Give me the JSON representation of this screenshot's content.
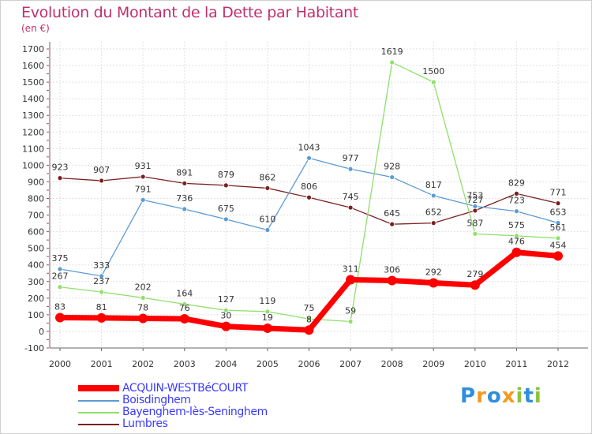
{
  "title": "Evolution du Montant de la Dette par Habitant",
  "subtitle": "(en €)",
  "logo": "Proxiti",
  "chart_data": {
    "type": "line",
    "x": [
      "2000",
      "2001",
      "2002",
      "2003",
      "2004",
      "2005",
      "2006",
      "2007",
      "2008",
      "2009",
      "2010",
      "2011",
      "2012"
    ],
    "ylim": [
      -100,
      1700
    ],
    "yticks": [
      -100,
      0,
      100,
      200,
      300,
      400,
      500,
      600,
      700,
      800,
      900,
      1000,
      1100,
      1200,
      1300,
      1400,
      1500,
      1600,
      1700
    ],
    "grid": true,
    "legend_position": "bottom-left",
    "series": [
      {
        "name": "ACQUIN-WESTBéCOURT",
        "color": "#ff0000",
        "values": [
          83,
          81,
          78,
          76,
          30,
          19,
          8,
          311,
          306,
          292,
          279,
          476,
          454
        ],
        "labels": [
          "83",
          "81",
          "78",
          "76",
          "30",
          "19",
          "8",
          "311",
          "306",
          "292",
          "279",
          "476",
          "454"
        ]
      },
      {
        "name": "Boisdinghem",
        "color": "#5b9bd5",
        "values": [
          375,
          333,
          791,
          736,
          675,
          610,
          1043,
          977,
          928,
          817,
          753,
          723,
          653
        ],
        "labels": [
          "375",
          "333",
          "791",
          "736",
          "675",
          "610",
          "1043",
          "977",
          "928",
          "817",
          "753",
          "723",
          "653"
        ]
      },
      {
        "name": "Bayenghem-lès-Seninghem",
        "color": "#8ee06a",
        "values": [
          267,
          237,
          202,
          164,
          127,
          119,
          75,
          59,
          1619,
          1500,
          587,
          575,
          561
        ],
        "labels": [
          "267",
          "237",
          "202",
          "164",
          "127",
          "119",
          "75",
          "59",
          "1619",
          "1500",
          "587",
          "575",
          "561"
        ]
      },
      {
        "name": "Lumbres",
        "color": "#7b2020",
        "values": [
          923,
          907,
          931,
          891,
          879,
          862,
          806,
          745,
          645,
          652,
          727,
          829,
          771
        ],
        "labels": [
          "923",
          "907",
          "931",
          "891",
          "879",
          "862",
          "806",
          "745",
          "645",
          "652",
          "727",
          "829",
          "771"
        ]
      }
    ]
  }
}
